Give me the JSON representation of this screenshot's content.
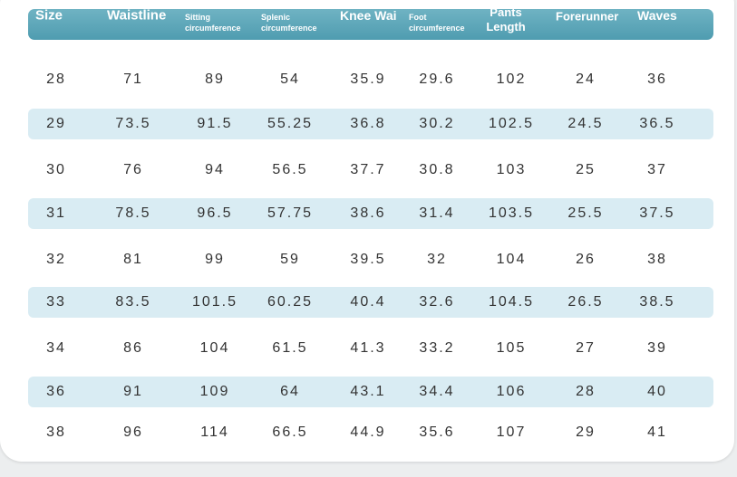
{
  "table": {
    "header": [
      "Size",
      "Waistline",
      "Sitting circumference",
      "Splenic circumference",
      "Knee Wai",
      "Foot circumference",
      "Pants Length",
      "Forerunner",
      "Waves"
    ],
    "rows": [
      [
        "28",
        "71",
        "89",
        "54",
        "35.9",
        "29.6",
        "102",
        "24",
        "36"
      ],
      [
        "29",
        "73.5",
        "91.5",
        "55.25",
        "36.8",
        "30.2",
        "102.5",
        "24.5",
        "36.5"
      ],
      [
        "30",
        "76",
        "94",
        "56.5",
        "37.7",
        "30.8",
        "103",
        "25",
        "37"
      ],
      [
        "31",
        "78.5",
        "96.5",
        "57.75",
        "38.6",
        "31.4",
        "103.5",
        "25.5",
        "37.5"
      ],
      [
        "32",
        "81",
        "99",
        "59",
        "39.5",
        "32",
        "104",
        "26",
        "38"
      ],
      [
        "33",
        "83.5",
        "101.5",
        "60.25",
        "40.4",
        "32.6",
        "104.5",
        "26.5",
        "38.5"
      ],
      [
        "34",
        "86",
        "104",
        "61.5",
        "41.3",
        "33.2",
        "105",
        "27",
        "39"
      ],
      [
        "36",
        "91",
        "109",
        "64",
        "43.1",
        "34.4",
        "106",
        "28",
        "40"
      ],
      [
        "38",
        "96",
        "114",
        "66.5",
        "44.9",
        "35.6",
        "107",
        "29",
        "41"
      ]
    ]
  }
}
